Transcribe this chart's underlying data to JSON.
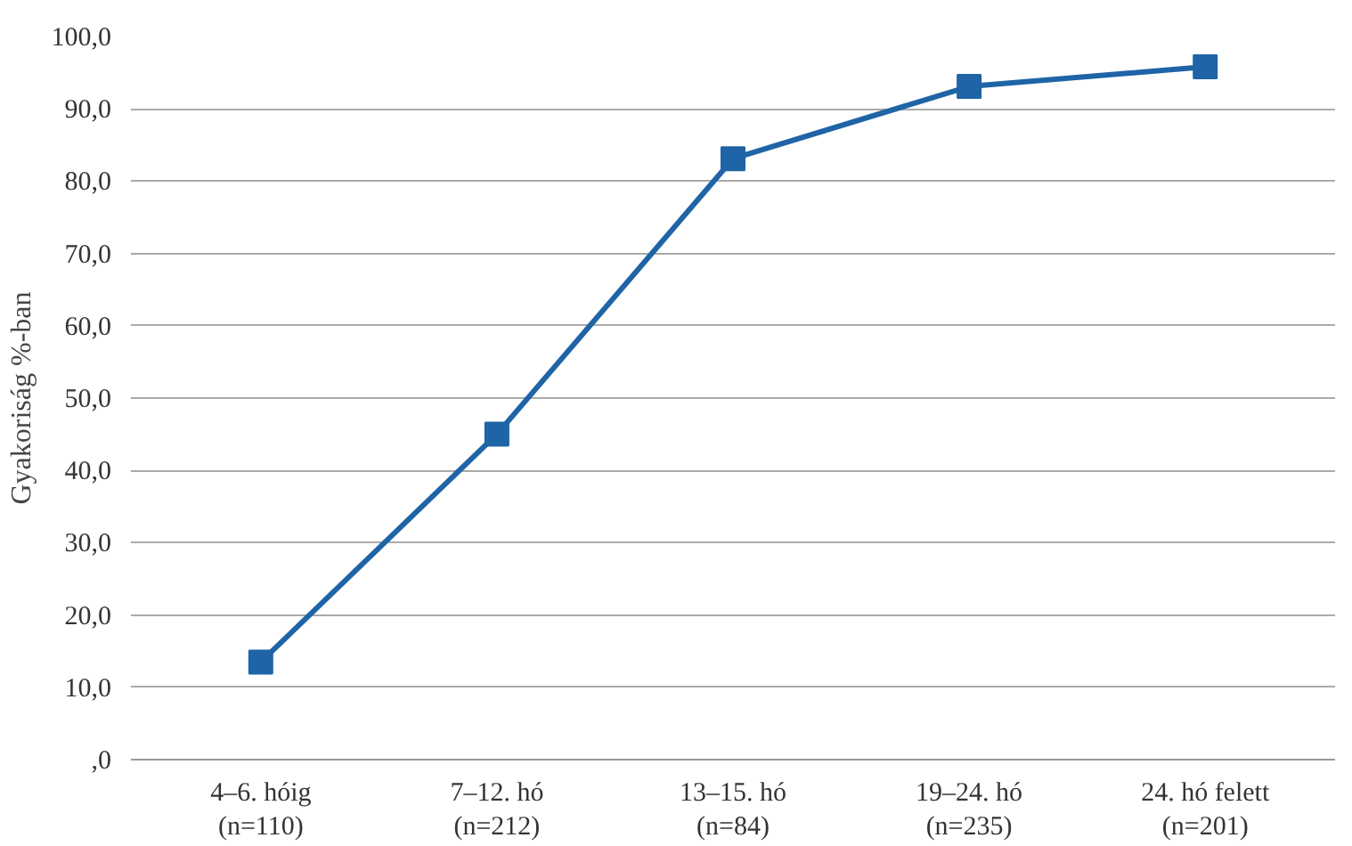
{
  "chart_data": {
    "type": "line",
    "ylabel": "Gyakoriság %-ban",
    "categories": [
      "4–6. hóig\n(n=110)",
      "7–12. hó\n(n=212)",
      "13–15. hó\n(n=84)",
      "19–24. hó\n(n=235)",
      "24. hó felett\n(n=201)"
    ],
    "series": [
      {
        "color": "#1f64a6",
        "values": [
          13.5,
          45.0,
          83.1,
          93.1,
          95.8
        ]
      }
    ],
    "ylim": [
      0,
      100
    ],
    "yticks": [
      {
        "value": 0,
        "label": ",0"
      },
      {
        "value": 10,
        "label": "10,0"
      },
      {
        "value": 20,
        "label": "20,0"
      },
      {
        "value": 30,
        "label": "30,0"
      },
      {
        "value": 40,
        "label": "40,0"
      },
      {
        "value": 50,
        "label": "50,0"
      },
      {
        "value": 60,
        "label": "60,0"
      },
      {
        "value": 70,
        "label": "70,0"
      },
      {
        "value": 80,
        "label": "80,0"
      },
      {
        "value": 90,
        "label": "90,0"
      },
      {
        "value": 100,
        "label": "100,0"
      }
    ],
    "grid": "y",
    "marker": "square",
    "line_style": "solid"
  }
}
